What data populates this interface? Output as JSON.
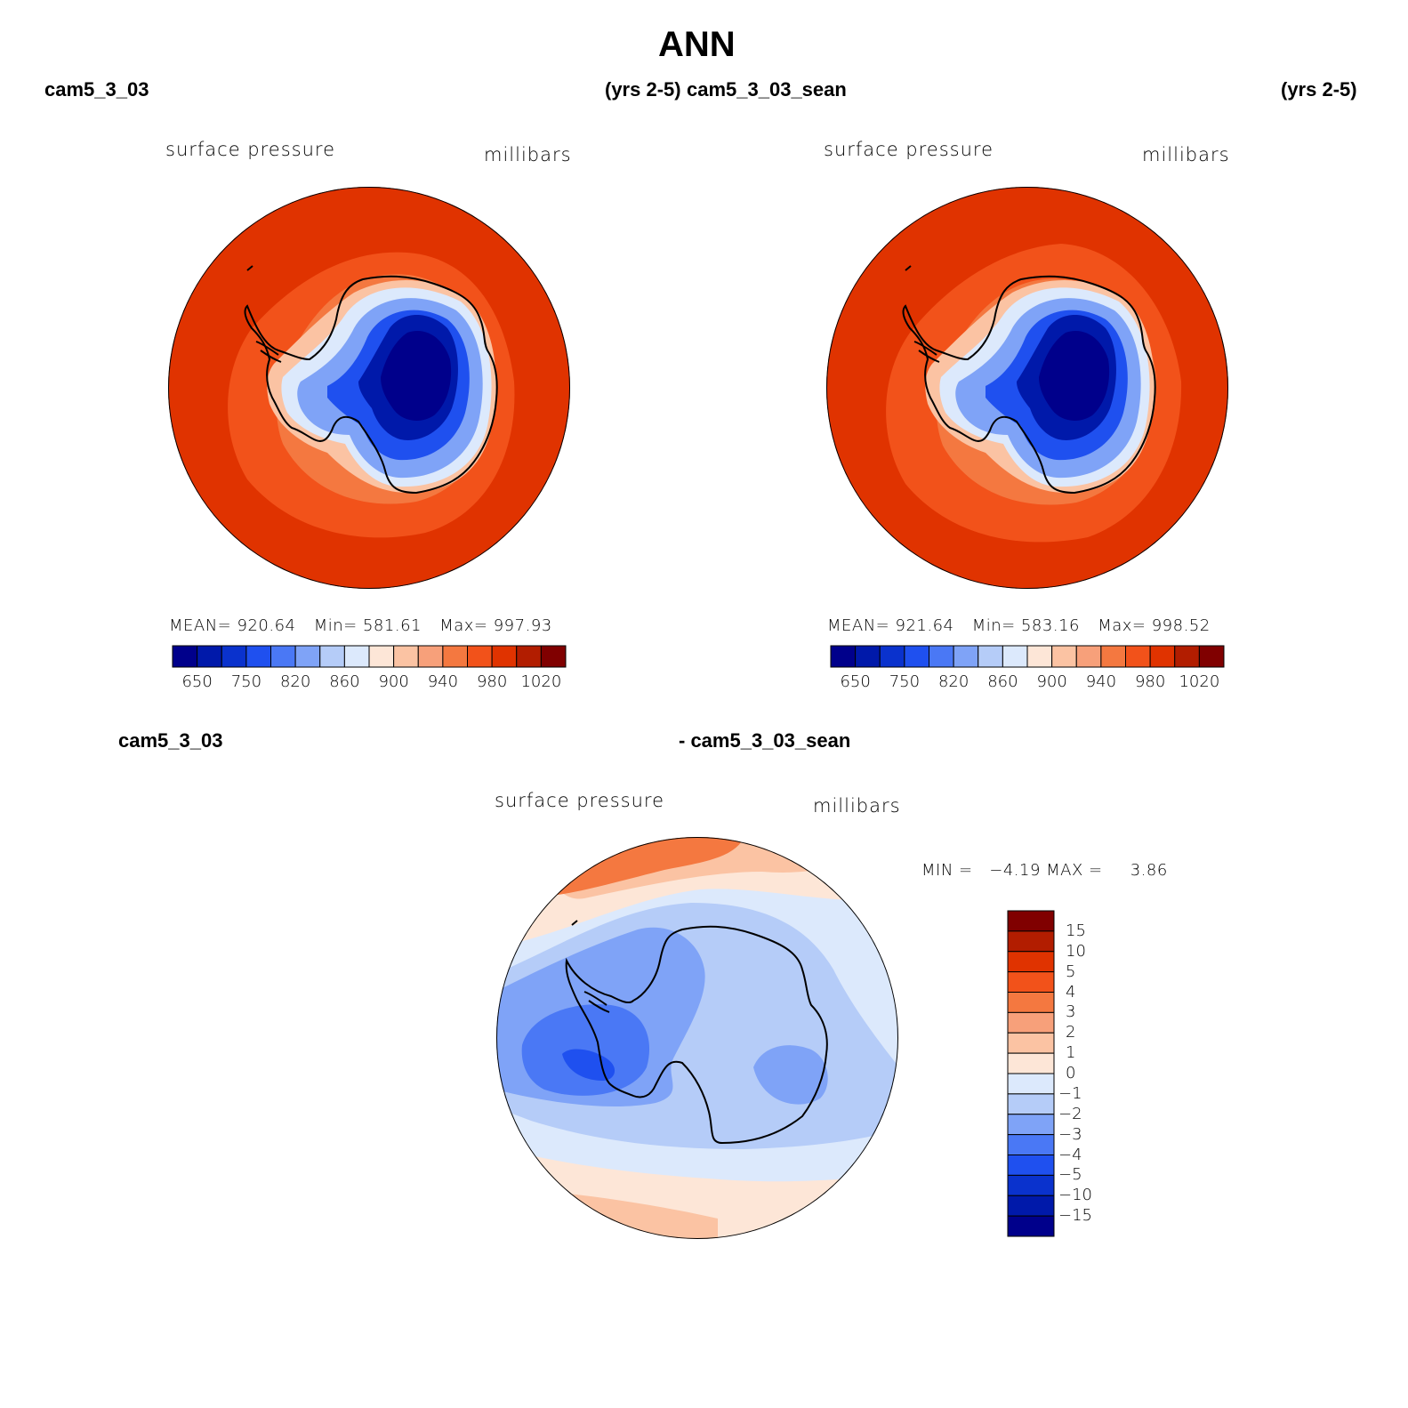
{
  "title": "ANN",
  "panels": [
    {
      "case_name": "cam5_3_03",
      "years": "(yrs 2-5)",
      "variable": "surface pressure",
      "units": "millibars",
      "stats": {
        "mean_label": "MEAN=",
        "mean": "920.64",
        "min_label": "Min=",
        "min": "581.61",
        "max_label": "Max=",
        "max": "997.93"
      },
      "colorbar_ticks": [
        "650",
        "750",
        "820",
        "860",
        "900",
        "940",
        "980",
        "1020"
      ]
    },
    {
      "case_name": "cam5_3_03_sean",
      "years": "(yrs 2-5)",
      "variable": "surface pressure",
      "units": "millibars",
      "stats": {
        "mean_label": "MEAN=",
        "mean": "921.64",
        "min_label": "Min=",
        "min": "583.16",
        "max_label": "Max=",
        "max": "998.52"
      },
      "colorbar_ticks": [
        "650",
        "750",
        "820",
        "860",
        "900",
        "940",
        "980",
        "1020"
      ]
    }
  ],
  "difference": {
    "case_a": "cam5_3_03",
    "case_b": "- cam5_3_03_sean",
    "variable": "surface pressure",
    "units": "millibars",
    "minmax_text": "MIN =   −4.19 MAX =     3.86",
    "colorbar_ticks": [
      "15",
      "10",
      "5",
      "4",
      "3",
      "2",
      "1",
      "0",
      "−1",
      "−2",
      "−3",
      "−4",
      "−5",
      "−10",
      "−15"
    ]
  },
  "palettes": {
    "field": [
      "#00008b",
      "#0019aa",
      "#0a32cd",
      "#1f50ef",
      "#4a78f5",
      "#7fa3f7",
      "#b5ccf8",
      "#dce9fc",
      "#fde6d7",
      "#fbc3a3",
      "#f7a07a",
      "#f47840",
      "#f2521a",
      "#e03300",
      "#b21d00",
      "#800000"
    ],
    "diff": [
      "#800000",
      "#b21d00",
      "#e03300",
      "#f2521a",
      "#f47840",
      "#f7a07a",
      "#fbc3a3",
      "#fde6d7",
      "#dce9fc",
      "#b5ccf8",
      "#7fa3f7",
      "#4a78f5",
      "#1f50ef",
      "#0a32cd",
      "#0019aa",
      "#00008b"
    ]
  }
}
